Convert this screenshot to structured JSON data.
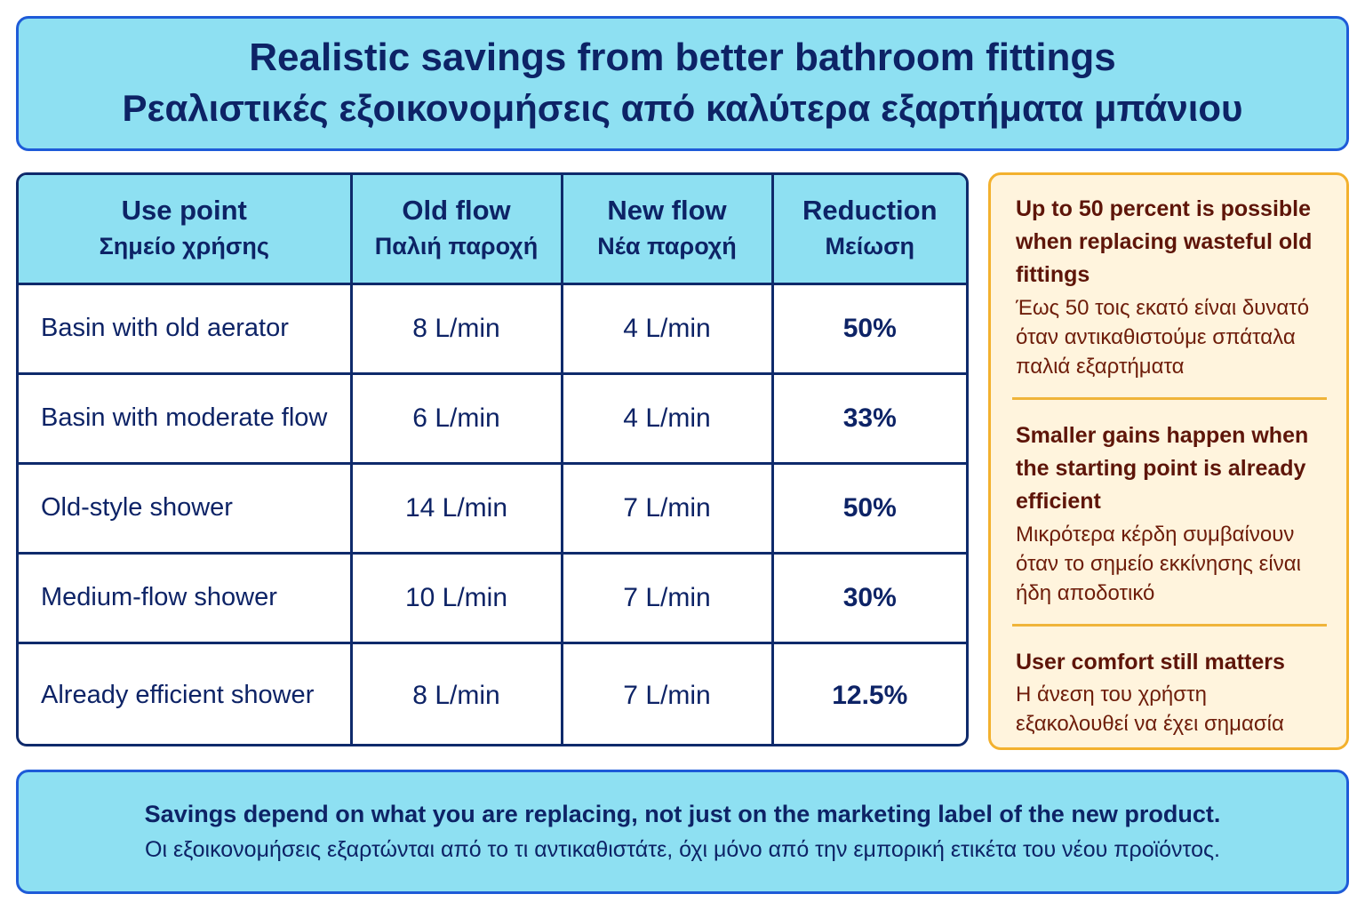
{
  "header": {
    "title_en": "Realistic savings from better bathroom fittings",
    "title_el": "Ρεαλιστικές εξοικονομήσεις από καλύτερα εξαρτήματα μπάνιου"
  },
  "table": {
    "columns": [
      {
        "en": "Use point",
        "el": "Σημείο χρήσης"
      },
      {
        "en": "Old flow",
        "el": "Παλιή παροχή"
      },
      {
        "en": "New flow",
        "el": "Νέα παροχή"
      },
      {
        "en": "Reduction",
        "el": "Μείωση"
      }
    ],
    "rows": [
      {
        "use": "Basin with old aerator",
        "old": "8 L/min",
        "new": "4 L/min",
        "reduction": "50%"
      },
      {
        "use": "Basin with moderate flow",
        "old": "6 L/min",
        "new": "4 L/min",
        "reduction": "33%"
      },
      {
        "use": "Old-style shower",
        "old": "14 L/min",
        "new": "7 L/min",
        "reduction": "50%"
      },
      {
        "use": "Medium-flow shower",
        "old": "10 L/min",
        "new": "7 L/min",
        "reduction": "30%"
      },
      {
        "use": "Already efficient shower",
        "old": "8 L/min",
        "new": "7 L/min",
        "reduction": "12.5%"
      }
    ]
  },
  "notes": [
    {
      "en": "Up to 50 percent is possible when replacing wasteful old fittings",
      "el": "Έως 50 τοις εκατό είναι δυνατό όταν αντικαθιστούμε σπάταλα παλιά εξαρτήματα"
    },
    {
      "en": "Smaller gains happen when the starting point is already efficient",
      "el": "Μικρότερα κέρδη συμβαίνουν όταν το σημείο εκκίνησης είναι ήδη αποδοτικό"
    },
    {
      "en": "User comfort still matters",
      "el": "Η άνεση του χρήστη εξακολουθεί να έχει σημασία"
    }
  ],
  "footer": {
    "line_en": "Savings depend on what you are replacing, not just on the marketing label of the new product.",
    "line_el": "Οι εξοικονομήσεις εξαρτώνται από το τι αντικαθιστάτε, όχι μόνο από την εμπορική ετικέτα του νέου προϊόντος."
  },
  "colors": {
    "header_bg": "#8ee0f2",
    "header_border": "#1e5bd8",
    "table_border": "#0f2a6b",
    "text_navy": "#0d2366",
    "note_bg": "#fff4dd",
    "note_border": "#f3b12e",
    "note_text": "#5e1509"
  }
}
